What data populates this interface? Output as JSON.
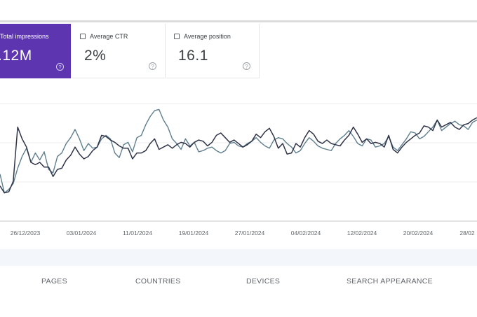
{
  "metrics": {
    "impressions": {
      "label": "Total impressions",
      "value": ".12M",
      "checked": true
    },
    "ctr": {
      "label": "Average CTR",
      "value": "2%",
      "checked": false
    },
    "position": {
      "label": "Average position",
      "value": "16.1",
      "checked": false
    }
  },
  "help_glyph": "?",
  "chart_data": {
    "type": "line",
    "x_ticks": [
      "26/12/2023",
      "03/01/2024",
      "11/01/2024",
      "19/01/2024",
      "27/01/2024",
      "04/02/2024",
      "12/02/2024",
      "20/02/2024",
      "28/02"
    ],
    "grid": true,
    "colors": {
      "series_a": "#5f7f8e",
      "series_b": "#2f3448"
    },
    "series": [
      {
        "values": [
          40,
          24,
          27,
          32,
          45,
          55,
          62,
          50,
          58,
          52,
          59,
          44,
          41,
          55,
          58,
          66,
          71,
          78,
          70,
          60,
          66,
          62,
          63,
          70,
          73,
          70,
          58,
          54,
          65,
          67,
          59,
          71,
          73,
          82,
          89,
          94,
          95,
          86,
          80,
          70,
          66,
          61,
          70,
          64,
          67,
          59,
          60,
          62,
          63,
          60,
          58,
          60,
          66,
          67,
          64,
          63,
          66,
          68,
          71,
          67,
          64,
          62,
          69,
          71,
          70,
          66,
          63,
          58,
          60,
          66,
          71,
          68,
          64,
          62,
          61,
          60,
          66,
          70,
          73,
          77,
          72,
          66,
          64,
          70,
          69,
          63,
          64,
          66,
          72,
          63,
          60,
          65,
          70,
          76,
          75,
          70,
          72,
          76,
          80,
          86,
          77,
          80,
          83,
          85,
          82,
          81,
          78,
          84,
          86
        ]
      },
      {
        "values": [
          30,
          24,
          25,
          34,
          80,
          70,
          63,
          50,
          48,
          50,
          46,
          46,
          38,
          44,
          45,
          52,
          56,
          63,
          57,
          53,
          55,
          60,
          63,
          73,
          72,
          69,
          67,
          64,
          62,
          62,
          53,
          58,
          58,
          60,
          66,
          70,
          61,
          63,
          65,
          62,
          65,
          67,
          66,
          63,
          67,
          69,
          68,
          64,
          67,
          73,
          75,
          71,
          67,
          69,
          66,
          63,
          65,
          68,
          74,
          71,
          76,
          79,
          72,
          62,
          66,
          57,
          58,
          66,
          63,
          71,
          77,
          74,
          68,
          66,
          69,
          66,
          65,
          64,
          69,
          73,
          80,
          74,
          67,
          70,
          66,
          67,
          66,
          63,
          73,
          61,
          58,
          63,
          67,
          70,
          73,
          75,
          81,
          80,
          77,
          86,
          80,
          82,
          84,
          80,
          78,
          82,
          83,
          86,
          88
        ]
      }
    ]
  },
  "tabs": [
    "PAGES",
    "COUNTRIES",
    "DEVICES",
    "SEARCH APPEARANCE"
  ]
}
